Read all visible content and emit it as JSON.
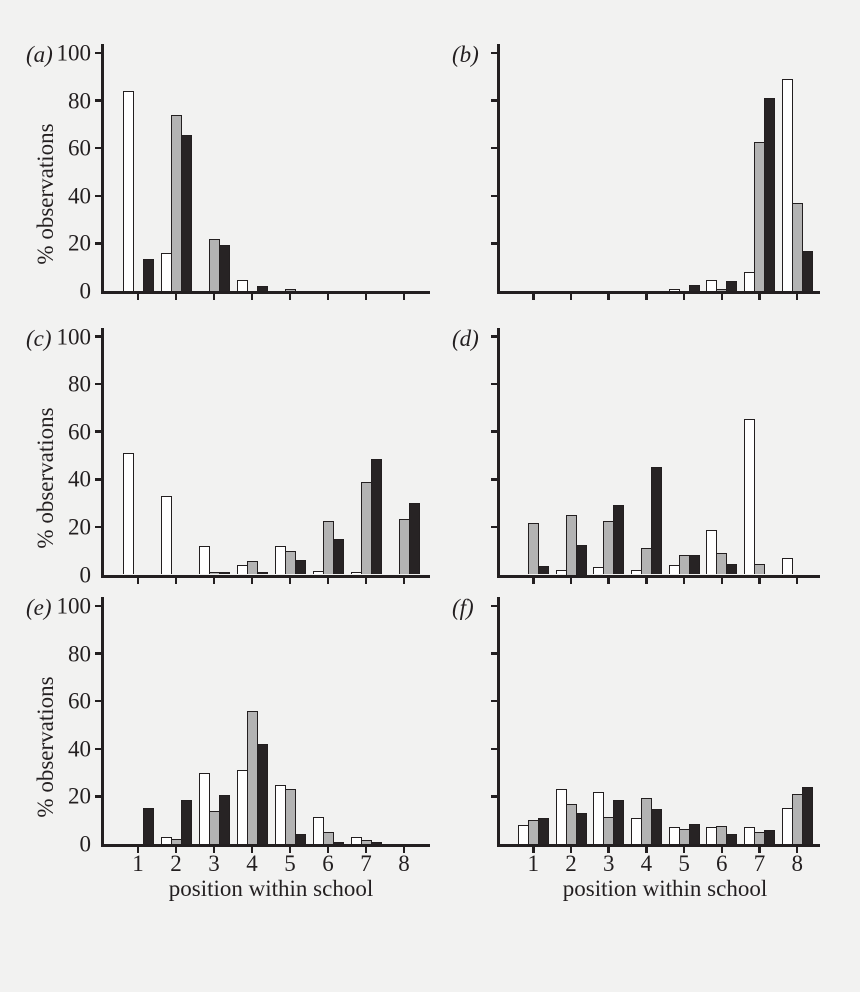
{
  "figure": {
    "ylabel": "% observations",
    "xlabel": "position within school",
    "y_tick_labels": [
      "100",
      "80",
      "60",
      "40",
      "20",
      "0"
    ],
    "x_tick_labels": [
      "1",
      "2",
      "3",
      "4",
      "5",
      "6",
      "7",
      "8"
    ],
    "colors": {
      "background": "#f2f2f1",
      "ink": "#231f20",
      "bar_white": "#ffffff",
      "bar_grey": "#b3b3b3",
      "bar_black": "#272324"
    }
  },
  "chart_data": [
    {
      "panel": "(a)",
      "type": "bar",
      "ylim": [
        0,
        100
      ],
      "categories": [
        "1",
        "2",
        "3",
        "4",
        "5",
        "6",
        "7",
        "8"
      ],
      "series": [
        {
          "name": "white",
          "values": [
            84,
            16,
            0,
            4.5,
            0,
            0,
            0,
            0
          ]
        },
        {
          "name": "grey",
          "values": [
            0,
            74,
            22,
            0,
            1,
            0,
            0,
            0
          ]
        },
        {
          "name": "black",
          "values": [
            13.5,
            65.5,
            19.5,
            2,
            0,
            0,
            0,
            0
          ]
        }
      ]
    },
    {
      "panel": "(b)",
      "type": "bar",
      "ylim": [
        0,
        100
      ],
      "categories": [
        "1",
        "2",
        "3",
        "4",
        "5",
        "6",
        "7",
        "8"
      ],
      "series": [
        {
          "name": "white",
          "values": [
            0,
            0,
            0,
            0,
            1,
            4.5,
            8,
            89
          ]
        },
        {
          "name": "grey",
          "values": [
            0,
            0,
            0,
            0,
            0,
            1,
            62.5,
            37
          ]
        },
        {
          "name": "black",
          "values": [
            0,
            0,
            0,
            0,
            2.5,
            4,
            81,
            17
          ]
        }
      ]
    },
    {
      "panel": "(c)",
      "type": "bar",
      "ylim": [
        0,
        100
      ],
      "categories": [
        "1",
        "2",
        "3",
        "4",
        "5",
        "6",
        "7",
        "8"
      ],
      "series": [
        {
          "name": "white",
          "values": [
            51,
            33,
            12,
            4,
            12,
            1.5,
            1,
            0
          ]
        },
        {
          "name": "grey",
          "values": [
            0,
            0,
            1,
            5.5,
            10,
            22.5,
            39,
            23.5
          ]
        },
        {
          "name": "black",
          "values": [
            0,
            0,
            1,
            1,
            6,
            15,
            48.5,
            30
          ]
        }
      ]
    },
    {
      "panel": "(d)",
      "type": "bar",
      "ylim": [
        0,
        100
      ],
      "categories": [
        "1",
        "2",
        "3",
        "4",
        "5",
        "6",
        "7",
        "8"
      ],
      "series": [
        {
          "name": "white",
          "values": [
            0,
            2,
            3,
            2,
            4,
            18.5,
            65.5,
            7
          ]
        },
        {
          "name": "grey",
          "values": [
            21.5,
            25,
            22.5,
            11,
            8,
            9,
            4.5,
            0
          ]
        },
        {
          "name": "black",
          "values": [
            3.5,
            12.5,
            29,
            45,
            8,
            4.5,
            0,
            0
          ]
        }
      ]
    },
    {
      "panel": "(e)",
      "type": "bar",
      "ylim": [
        0,
        100
      ],
      "categories": [
        "1",
        "2",
        "3",
        "4",
        "5",
        "6",
        "7",
        "8"
      ],
      "series": [
        {
          "name": "white",
          "values": [
            0,
            3,
            30,
            31,
            25,
            11.5,
            3,
            0
          ]
        },
        {
          "name": "grey",
          "values": [
            0,
            2,
            14,
            56,
            23,
            5,
            1.5,
            0
          ]
        },
        {
          "name": "black",
          "values": [
            15,
            18.5,
            20.5,
            42,
            4,
            1,
            1,
            0
          ]
        }
      ]
    },
    {
      "panel": "(f)",
      "type": "bar",
      "ylim": [
        0,
        100
      ],
      "categories": [
        "1",
        "2",
        "3",
        "4",
        "5",
        "6",
        "7",
        "8"
      ],
      "series": [
        {
          "name": "white",
          "values": [
            8,
            23,
            22,
            11,
            7,
            7,
            7,
            15
          ]
        },
        {
          "name": "grey",
          "values": [
            10,
            17,
            11.5,
            19.5,
            6.5,
            7.5,
            5,
            21
          ]
        },
        {
          "name": "black",
          "values": [
            11,
            13,
            18.5,
            14.5,
            8.5,
            4,
            6,
            24
          ]
        }
      ]
    }
  ]
}
